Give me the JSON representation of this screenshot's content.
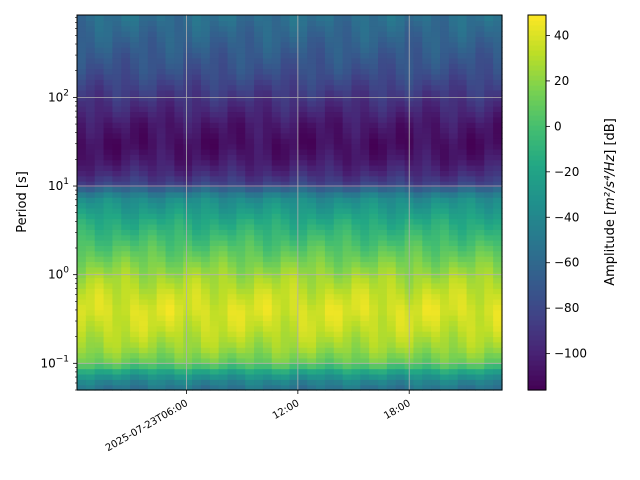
{
  "chart_data": {
    "type": "heatmap",
    "title": "",
    "xlabel": "",
    "ylabel": "Period [s]",
    "y_scale": "log",
    "ylim": [
      0.05,
      850
    ],
    "x_start": "2025-07-23T00:06",
    "x_end": "2025-07-23T23:00",
    "x_ticks": [
      {
        "value": "2025-07-23T06:00",
        "label": "2025-07-23T06:00"
      },
      {
        "value": "2025-07-23T12:00",
        "label": "12:00"
      },
      {
        "value": "2025-07-23T18:00",
        "label": "18:00"
      }
    ],
    "y_ticks": [
      {
        "value": 0.1,
        "base": "10",
        "exp": "−1"
      },
      {
        "value": 1,
        "base": "10",
        "exp": "0"
      },
      {
        "value": 10,
        "base": "10",
        "exp": "1"
      },
      {
        "value": 100,
        "base": "10",
        "exp": "2"
      }
    ],
    "grid": true,
    "colormap": "viridis",
    "colorbar": {
      "label_prefix": "Amplitude [",
      "label_math": "m²/s⁴/Hz",
      "label_suffix": "] [dB]",
      "range": [
        -116,
        49
      ],
      "ticks": [
        "40",
        "20",
        "0",
        "−20",
        "−40",
        "−60",
        "−80",
        "−100"
      ],
      "tick_values": [
        40,
        20,
        0,
        -20,
        -40,
        -60,
        -80,
        -100
      ]
    },
    "period_profile": {
      "periods": [
        0.05,
        0.065,
        0.08,
        0.1,
        0.15,
        0.25,
        0.4,
        0.6,
        1,
        2,
        4,
        7,
        9,
        10,
        14,
        20,
        30,
        50,
        100,
        200,
        400,
        850
      ],
      "amplitude_db": [
        -55,
        -40,
        -20,
        10,
        25,
        35,
        40,
        35,
        25,
        5,
        -15,
        -35,
        -55,
        -80,
        -95,
        -105,
        -110,
        -105,
        -90,
        -75,
        -65,
        -55
      ]
    },
    "time_bins": 48
  }
}
